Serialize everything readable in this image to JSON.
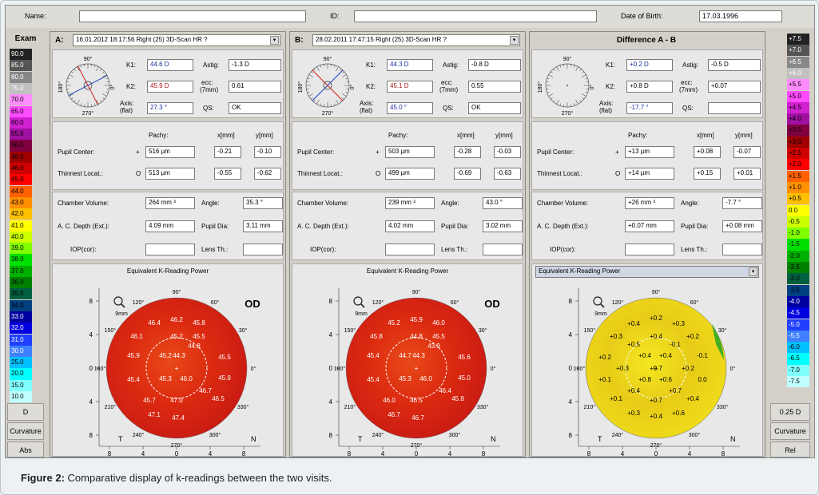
{
  "header": {
    "name_label": "Name:",
    "name_value": "",
    "id_label": "ID:",
    "id_value": "",
    "dob_label": "Date of Birth:",
    "dob_value": "17.03.1996"
  },
  "colorbar_left": {
    "title": "Exam",
    "items": [
      {
        "label": "90.0",
        "color": "#222222"
      },
      {
        "label": "85.0",
        "color": "#555555"
      },
      {
        "label": "80.0",
        "color": "#888888"
      },
      {
        "label": "75.0",
        "color": "#c0c0c0"
      },
      {
        "label": "70.0",
        "color": "#ff8cff"
      },
      {
        "label": "65.0",
        "color": "#ff4cff"
      },
      {
        "label": "60.0",
        "color": "#d020d0"
      },
      {
        "label": "55.0",
        "color": "#a010a0"
      },
      {
        "label": "50.0",
        "color": "#800040"
      },
      {
        "label": "48.0",
        "color": "#a00000"
      },
      {
        "label": "46.0",
        "color": "#d00000"
      },
      {
        "label": "45.0",
        "color": "#ff0000"
      },
      {
        "label": "44.0",
        "color": "#ff6000"
      },
      {
        "label": "43.0",
        "color": "#ff9000"
      },
      {
        "label": "42.0",
        "color": "#ffc000"
      },
      {
        "label": "41.0",
        "color": "#ffff00"
      },
      {
        "label": "40.0",
        "color": "#ccff00"
      },
      {
        "label": "39.0",
        "color": "#80ff00"
      },
      {
        "label": "38.0",
        "color": "#00e000"
      },
      {
        "label": "37.0",
        "color": "#00b000"
      },
      {
        "label": "36.0",
        "color": "#008000"
      },
      {
        "label": "35.0",
        "color": "#006040"
      },
      {
        "label": "34.0",
        "color": "#004080"
      },
      {
        "label": "33.0",
        "color": "#0000a0"
      },
      {
        "label": "32.0",
        "color": "#0000e0"
      },
      {
        "label": "31.0",
        "color": "#2040ff"
      },
      {
        "label": "30.0",
        "color": "#4080ff"
      },
      {
        "label": "25.0",
        "color": "#00c0ff"
      },
      {
        "label": "20.0",
        "color": "#00ffff"
      },
      {
        "label": "15.0",
        "color": "#80ffff"
      },
      {
        "label": "10.0",
        "color": "#c0ffff"
      }
    ],
    "step": "D",
    "mode": "Curvature",
    "scale": "Abs"
  },
  "colorbar_right": {
    "items": [
      {
        "label": "+7.5",
        "color": "#222222"
      },
      {
        "label": "+7.0",
        "color": "#555555"
      },
      {
        "label": "+6.5",
        "color": "#888888"
      },
      {
        "label": "+6.0",
        "color": "#c0c0c0"
      },
      {
        "label": "+5.5",
        "color": "#ff8cff"
      },
      {
        "label": "+5.0",
        "color": "#ff4cff"
      },
      {
        "label": "+4.5",
        "color": "#d020d0"
      },
      {
        "label": "+4.0",
        "color": "#a010a0"
      },
      {
        "label": "+3.5",
        "color": "#800040"
      },
      {
        "label": "+3.0",
        "color": "#a00000"
      },
      {
        "label": "+2.5",
        "color": "#d00000"
      },
      {
        "label": "+2.0",
        "color": "#ff0000"
      },
      {
        "label": "+1.5",
        "color": "#ff6000"
      },
      {
        "label": "+1.0",
        "color": "#ff9000"
      },
      {
        "label": "+0.5",
        "color": "#ffc000"
      },
      {
        "label": "0.0",
        "color": "#ffff00"
      },
      {
        "label": "-0.5",
        "color": "#ccff00"
      },
      {
        "label": "-1.0",
        "color": "#80ff00"
      },
      {
        "label": "-1.5",
        "color": "#00e000"
      },
      {
        "label": "-2.0",
        "color": "#00b000"
      },
      {
        "label": "-2.5",
        "color": "#008000"
      },
      {
        "label": "-3.0",
        "color": "#006040"
      },
      {
        "label": "-3.5",
        "color": "#004080"
      },
      {
        "label": "-4.0",
        "color": "#0000a0"
      },
      {
        "label": "-4.5",
        "color": "#0000e0"
      },
      {
        "label": "-5.0",
        "color": "#2040ff"
      },
      {
        "label": "-5.5",
        "color": "#4080ff"
      },
      {
        "label": "-6.0",
        "color": "#00c0ff"
      },
      {
        "label": "-6.5",
        "color": "#00ffff"
      },
      {
        "label": "-7.0",
        "color": "#80ffff"
      },
      {
        "label": "-7.5",
        "color": "#c0ffff"
      }
    ],
    "step": "0.25 D",
    "mode": "Curvature",
    "scale": "Rel"
  },
  "labels": {
    "k1": "K1:",
    "k2": "K2:",
    "axis": "Axis:",
    "flat": "(flat)",
    "astig": "Astig:",
    "ecc": "ecc:",
    "ecc_mm": "(7mm)",
    "qs": "QS:",
    "pachy": "Pachy:",
    "xmm": "x[mm]",
    "ymm": "y[mm]",
    "pupil_center": "Pupil Center:",
    "thinnest": "Thinnest Locat.:",
    "chamber_volume": "Chamber Volume:",
    "angle": "Angle:",
    "ac_depth": "A. C. Depth (Ext.):",
    "pupil_dia": "Pupil Dia:",
    "iop": "IOP(cor):",
    "lens": "Lens Th.:",
    "eq_k": "Equivalent K-Reading Power",
    "od": "OD",
    "mm9": "9mm",
    "T": "T",
    "N": "N",
    "deg90": "90°",
    "deg270": "270°",
    "deg180": "180°",
    "deg0": "0°",
    "deg120": "120°",
    "deg60": "60°",
    "deg150": "150°",
    "deg30": "30°",
    "deg210": "210°",
    "deg330": "330°",
    "deg240": "240°",
    "deg300": "300°",
    "plus": "+",
    "circle": "O"
  },
  "panels": [
    {
      "letter": "A:",
      "exam": "16.01.2012  18:17:56  Right  (25) 3D-Scan HR  ?",
      "k1": "44.6 D",
      "k2": "45.9 D",
      "axis": "27.3 °",
      "astig": "-1.3 D",
      "ecc": "0.61",
      "qs": "OK",
      "pupil_pachy": "516 µm",
      "pupil_x": "-0.21",
      "pupil_y": "-0.10",
      "thin_pachy": "513 µm",
      "thin_x": "-0.55",
      "thin_y": "-0.62",
      "chamber": "264 mm ³",
      "angle": "35.3 °",
      "acd": "4.09 mm",
      "pupil_dia": "3.11 mm",
      "iop": "",
      "lens": "",
      "map_colors": [
        "#c81a14",
        "#dc2a10",
        "#e84a18"
      ],
      "map_values": [
        "46.2",
        "45.8",
        "46.4",
        "46.1",
        "45.2",
        "45.5",
        "44.8",
        "45.9",
        "45.2",
        "44.3",
        "45.5",
        "45.4",
        "45.3",
        "46.0",
        "45.9",
        "46.7",
        "45.7",
        "47.0",
        "46.5",
        "47.1",
        "47.4"
      ]
    },
    {
      "letter": "B:",
      "exam": "28.02.2011  17:47:15  Right  (25) 3D-Scan HR  ?",
      "k1": "44.3 D",
      "k2": "45.1 D",
      "axis": "45.0 °",
      "astig": "-0.8 D",
      "ecc": "0.55",
      "qs": "OK",
      "pupil_pachy": "503 µm",
      "pupil_x": "-0.28",
      "pupil_y": "-0.03",
      "thin_pachy": "499 µm",
      "thin_x": "-0.69",
      "thin_y": "-0.63",
      "chamber": "239 mm ³",
      "angle": "43.0 °",
      "acd": "4.02 mm",
      "pupil_dia": "3.02 mm",
      "iop": "",
      "lens": "",
      "map_colors": [
        "#c81a14",
        "#dc2a10",
        "#e84a18"
      ],
      "map_values": [
        "45.9",
        "46.0",
        "45.2",
        "45.8",
        "44.8",
        "45.5",
        "43.9",
        "45.4",
        "44.7",
        "44.3",
        "45.6",
        "45.4",
        "45.3",
        "46.0",
        "45.0",
        "46.4",
        "46.0",
        "46.5",
        "45.8",
        "46.7",
        "46.7"
      ]
    },
    {
      "letter": "Difference A - B",
      "exam": "",
      "k1": "+0.2 D",
      "k2": "+0.8 D",
      "axis": "-17.7 °",
      "astig": "-0.5 D",
      "ecc": "+0.07",
      "qs": "",
      "pupil_pachy": "+13 µm",
      "pupil_x": "+0.08",
      "pupil_y": "-0.07",
      "thin_pachy": "+14 µm",
      "thin_x": "+0.15",
      "thin_y": "+0.01",
      "chamber": "+26 mm ³",
      "angle": "-7.7 °",
      "acd": "+0.07 mm",
      "pupil_dia": "+0.08 mm",
      "iop": "",
      "lens": "",
      "map_colors": [
        "#f0dc1a",
        "#e8cc18",
        "#f4e820"
      ],
      "map_values": [
        "+0.2",
        "+0.4",
        "+0.3",
        "+0.3",
        "+0.4",
        "+0.2",
        "+0.5",
        "-0.1",
        "+0.4",
        "+0.4",
        "-0.1",
        "+0.2",
        "+0.3",
        "+0.7",
        "+0.2",
        "+0.1",
        "+0.8",
        "+0.6",
        "0.0",
        "+0.4",
        "+0.7",
        "+0.1",
        "+0.7",
        "+0.4",
        "+0.3",
        "+0.4",
        "+0.6"
      ]
    }
  ],
  "caption": {
    "bold": "Figure 2:",
    "text": " Comparative display of k-readings between the two visits."
  }
}
